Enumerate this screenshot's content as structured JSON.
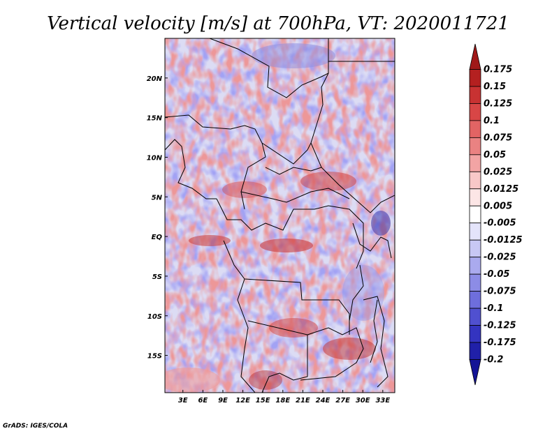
{
  "chart_data": {
    "type": "heatmap",
    "title": "Vertical velocity [m/s] at 700hPa, VT: 2020011721",
    "xlabel": "",
    "ylabel": "",
    "x_ticks": [
      {
        "value": 3,
        "label": "3E"
      },
      {
        "value": 6,
        "label": "6E"
      },
      {
        "value": 9,
        "label": "9E"
      },
      {
        "value": 12,
        "label": "12E"
      },
      {
        "value": 15,
        "label": "15E"
      },
      {
        "value": 18,
        "label": "18E"
      },
      {
        "value": 21,
        "label": "21E"
      },
      {
        "value": 24,
        "label": "24E"
      },
      {
        "value": 27,
        "label": "27E"
      },
      {
        "value": 30,
        "label": "30E"
      },
      {
        "value": 33,
        "label": "33E"
      }
    ],
    "y_ticks": [
      {
        "value": 20,
        "label": "20N"
      },
      {
        "value": 15,
        "label": "15N"
      },
      {
        "value": 10,
        "label": "10N"
      },
      {
        "value": 5,
        "label": "5N"
      },
      {
        "value": 0,
        "label": "EQ"
      },
      {
        "value": -5,
        "label": "5S"
      },
      {
        "value": -10,
        "label": "10S"
      },
      {
        "value": -15,
        "label": "15S"
      }
    ],
    "xlim": [
      0.3,
      34.8
    ],
    "ylim": [
      -19.7,
      25
    ],
    "colorbar": {
      "levels": [
        "0.175",
        "0.15",
        "0.125",
        "0.1",
        "0.075",
        "0.05",
        "0.025",
        "0.0125",
        "0.005",
        "-0.005",
        "-0.0125",
        "-0.025",
        "-0.05",
        "-0.075",
        "-0.1",
        "-0.125",
        "-0.175",
        "-0.2"
      ],
      "colors": [
        "#a01818",
        "#b42020",
        "#c83232",
        "#d84646",
        "#e26464",
        "#ea8282",
        "#f2a4a4",
        "#f8c8c8",
        "#fce6e6",
        "#ffffff",
        "#e4e4fa",
        "#c8c8f4",
        "#aaaaee",
        "#8c8ce6",
        "#6e6edc",
        "#5050d0",
        "#3434c0",
        "#2020a8",
        "#141496"
      ]
    },
    "credit": "GrADS: IGES/COLA"
  }
}
